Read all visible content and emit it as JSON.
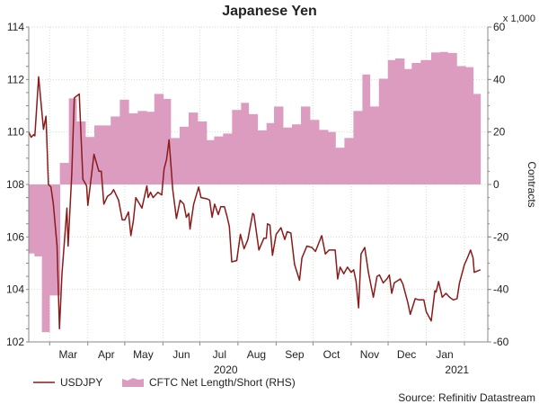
{
  "chart_data": {
    "type": "line",
    "title": "Japanese Yen",
    "source": "Source: Refinitiv Datastream",
    "left_axis": {
      "ylim": [
        102,
        114
      ],
      "ticks": [
        102,
        104,
        106,
        108,
        110,
        112,
        114
      ]
    },
    "right_axis": {
      "label": "Contracts",
      "unit_label": "x 1,000",
      "ylim": [
        -60,
        60
      ],
      "ticks": [
        -60,
        -40,
        -20,
        0,
        20,
        40,
        60
      ]
    },
    "x_axis": {
      "unit": "days from start of series (mid-Feb 2020)",
      "xlim": [
        0,
        373
      ],
      "month_ticks": [
        17,
        48,
        78,
        109,
        139,
        170,
        201,
        231,
        262,
        292,
        323,
        354
      ],
      "month_labels": [
        {
          "label": "Mar",
          "day": 32
        },
        {
          "label": "Apr",
          "day": 63
        },
        {
          "label": "May",
          "day": 93
        },
        {
          "label": "Jun",
          "day": 124
        },
        {
          "label": "Jul",
          "day": 155
        },
        {
          "label": "Aug",
          "day": 185
        },
        {
          "label": "Sep",
          "day": 216
        },
        {
          "label": "Oct",
          "day": 246
        },
        {
          "label": "Nov",
          "day": 277
        },
        {
          "label": "Dec",
          "day": 307
        },
        {
          "label": "Jan",
          "day": 338
        }
      ],
      "year_labels": [
        {
          "label": "2020",
          "day": 160
        },
        {
          "label": "2021",
          "day": 348
        }
      ]
    },
    "legend": {
      "placement": "bottom-left",
      "entries": [
        "USDJPY",
        "CFTC Net Length/Short (RHS)"
      ]
    },
    "colors": {
      "usdjpy": "#8b1a1a",
      "cftc": "#dc9cc0",
      "grid": "#cfe0c8"
    },
    "series": [
      {
        "name": "USDJPY",
        "axis": "left",
        "type": "line",
        "points": [
          [
            0,
            110.0
          ],
          [
            2,
            109.8
          ],
          [
            4,
            109.9
          ],
          [
            5,
            109.85
          ],
          [
            8,
            112.1
          ],
          [
            12,
            110.1
          ],
          [
            14,
            110.6
          ],
          [
            16,
            108.0
          ],
          [
            18,
            107.9
          ],
          [
            20,
            107.25
          ],
          [
            23,
            105.65
          ],
          [
            25,
            102.5
          ],
          [
            27,
            104.6
          ],
          [
            31,
            107.1
          ],
          [
            32,
            105.65
          ],
          [
            35,
            108.4
          ],
          [
            37,
            111.3
          ],
          [
            41,
            111.45
          ],
          [
            44,
            108.2
          ],
          [
            47,
            107.95
          ],
          [
            48,
            107.2
          ],
          [
            53,
            109.15
          ],
          [
            57,
            108.5
          ],
          [
            59,
            108.5
          ],
          [
            61,
            107.25
          ],
          [
            64,
            107.55
          ],
          [
            67,
            107.65
          ],
          [
            69,
            107.8
          ],
          [
            73,
            107.4
          ],
          [
            76,
            106.65
          ],
          [
            78,
            106.65
          ],
          [
            81,
            106.95
          ],
          [
            83,
            106.05
          ],
          [
            85,
            106.6
          ],
          [
            87,
            107.5
          ],
          [
            92,
            107.1
          ],
          [
            96,
            107.95
          ],
          [
            97,
            107.5
          ],
          [
            99,
            107.7
          ],
          [
            101,
            107.5
          ],
          [
            105,
            107.7
          ],
          [
            108,
            107.6
          ],
          [
            110,
            108.6
          ],
          [
            112,
            108.95
          ],
          [
            114,
            109.7
          ],
          [
            117,
            107.8
          ],
          [
            120,
            106.7
          ],
          [
            123,
            107.4
          ],
          [
            126,
            107.25
          ],
          [
            128,
            106.75
          ],
          [
            130,
            106.9
          ],
          [
            131,
            106.3
          ],
          [
            134,
            107.25
          ],
          [
            138,
            107.9
          ],
          [
            140,
            107.5
          ],
          [
            145,
            107.45
          ],
          [
            147,
            107.4
          ],
          [
            149,
            106.75
          ],
          [
            151,
            107.25
          ],
          [
            154,
            106.85
          ],
          [
            156,
            107.15
          ],
          [
            159,
            107.15
          ],
          [
            161,
            106.8
          ],
          [
            163,
            106.4
          ],
          [
            165,
            105.05
          ],
          [
            169,
            105.1
          ],
          [
            172,
            106.1
          ],
          [
            175,
            105.55
          ],
          [
            178,
            105.9
          ],
          [
            182,
            106.9
          ],
          [
            183,
            106.85
          ],
          [
            187,
            105.5
          ],
          [
            191,
            105.95
          ],
          [
            193,
            105.95
          ],
          [
            194,
            106.5
          ],
          [
            196,
            106.45
          ],
          [
            198,
            105.3
          ],
          [
            201,
            106.1
          ],
          [
            205,
            106.35
          ],
          [
            208,
            105.9
          ],
          [
            210,
            106.2
          ],
          [
            213,
            106.15
          ],
          [
            216,
            104.95
          ],
          [
            220,
            104.35
          ],
          [
            222,
            105.2
          ],
          [
            226,
            105.65
          ],
          [
            230,
            105.6
          ],
          [
            233,
            105.45
          ],
          [
            238,
            106.05
          ],
          [
            241,
            105.35
          ],
          [
            244,
            105.5
          ],
          [
            249,
            105.5
          ],
          [
            251,
            104.4
          ],
          [
            253,
            104.85
          ],
          [
            256,
            104.6
          ],
          [
            259,
            104.85
          ],
          [
            262,
            104.65
          ],
          [
            264,
            104.75
          ],
          [
            266,
            104.3
          ],
          [
            268,
            103.3
          ],
          [
            270,
            105.35
          ],
          [
            273,
            105.6
          ],
          [
            276,
            104.65
          ],
          [
            280,
            103.7
          ],
          [
            283,
            104.5
          ],
          [
            285,
            104.55
          ],
          [
            288,
            104.25
          ],
          [
            291,
            104.4
          ],
          [
            293,
            104.55
          ],
          [
            295,
            103.85
          ],
          [
            297,
            104.25
          ],
          [
            302,
            104.4
          ],
          [
            304,
            104.2
          ],
          [
            308,
            103.5
          ],
          [
            310,
            103.05
          ],
          [
            314,
            103.65
          ],
          [
            317,
            103.6
          ],
          [
            321,
            103.6
          ],
          [
            323,
            103.15
          ],
          [
            327,
            102.8
          ],
          [
            330,
            103.95
          ],
          [
            331,
            103.9
          ],
          [
            333,
            104.3
          ],
          [
            336,
            103.7
          ],
          [
            339,
            103.85
          ],
          [
            342,
            103.7
          ],
          [
            345,
            103.6
          ],
          [
            348,
            103.65
          ],
          [
            350,
            104.25
          ],
          [
            354,
            104.95
          ],
          [
            356,
            105.15
          ],
          [
            359,
            105.5
          ],
          [
            361,
            105.2
          ],
          [
            362,
            104.65
          ],
          [
            367,
            104.75
          ]
        ]
      },
      {
        "name": "CFTC Net Length/Short (RHS)",
        "axis": "right",
        "type": "step-area",
        "end_day": 367,
        "points": [
          [
            0,
            -26.3
          ],
          [
            4.6,
            -27.4
          ],
          [
            10.7,
            -56.3
          ],
          [
            16.8,
            -42.3
          ],
          [
            25.3,
            8.2
          ],
          [
            32.6,
            32.8
          ],
          [
            38.7,
            24
          ],
          [
            46,
            18.1
          ],
          [
            53.3,
            22.5
          ],
          [
            66.6,
            25.9
          ],
          [
            74,
            32.3
          ],
          [
            81.2,
            27.1
          ],
          [
            88.5,
            28
          ],
          [
            95.8,
            27.7
          ],
          [
            102,
            34.5
          ],
          [
            109.3,
            32.6
          ],
          [
            115.3,
            17.7
          ],
          [
            122.6,
            22
          ],
          [
            129.9,
            27.4
          ],
          [
            137.2,
            24
          ],
          [
            144.5,
            16.9
          ],
          [
            150.6,
            18.3
          ],
          [
            157.9,
            19.4
          ],
          [
            165.2,
            28.4
          ],
          [
            172.5,
            31.1
          ],
          [
            178.6,
            26.8
          ],
          [
            185.9,
            20.6
          ],
          [
            193.2,
            23.4
          ],
          [
            199.3,
            29.7
          ],
          [
            206.6,
            21.7
          ],
          [
            213.9,
            22.9
          ],
          [
            221.2,
            29.7
          ],
          [
            228.5,
            24.6
          ],
          [
            235.8,
            20.8
          ],
          [
            243.1,
            20
          ],
          [
            249.2,
            14
          ],
          [
            256.5,
            17.7
          ],
          [
            263.8,
            28
          ],
          [
            271.1,
            41.9
          ],
          [
            277.2,
            29.7
          ],
          [
            284.5,
            40.3
          ],
          [
            291.8,
            47.4
          ],
          [
            297.8,
            48
          ],
          [
            305.1,
            44
          ],
          [
            311.2,
            46.3
          ],
          [
            318.5,
            47.4
          ],
          [
            327,
            50.3
          ],
          [
            334.3,
            50.5
          ],
          [
            340.4,
            50.1
          ],
          [
            347.7,
            45.1
          ],
          [
            355,
            44.7
          ],
          [
            361.1,
            34.5
          ]
        ]
      }
    ]
  }
}
